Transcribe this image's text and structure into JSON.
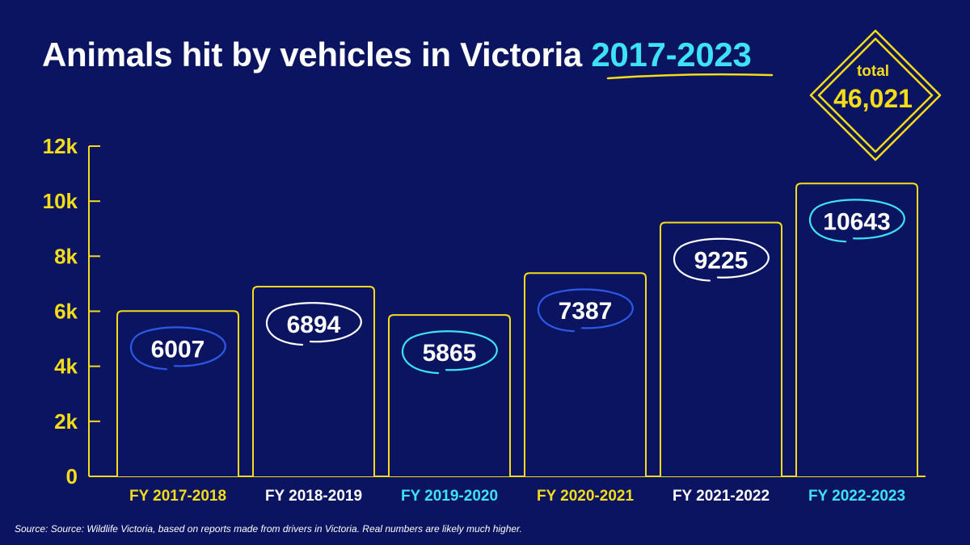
{
  "header": {
    "title_main": "Animals hit by vehicles in Victoria",
    "title_highlight": "2017-2023"
  },
  "total": {
    "label": "total",
    "value": "46,021"
  },
  "footer": {
    "source": "Source: Source: Wildlife Victoria, based on reports made from drivers in Victoria. Real numbers are likely much higher."
  },
  "colors": {
    "background": "#0b1461",
    "yellow": "#f5dc19",
    "cyan": "#3ee2f5",
    "blue": "#2c59e6",
    "white": "#ffffff"
  },
  "chart_data": {
    "type": "bar",
    "title": "Animals hit by vehicles in Victoria 2017-2023",
    "xlabel": "",
    "ylabel": "",
    "categories": [
      "FY 2017-2018",
      "FY 2018-2019",
      "FY 2019-2020",
      "FY 2020-2021",
      "FY 2021-2022",
      "FY 2022-2023"
    ],
    "values": [
      6007,
      6894,
      5865,
      7387,
      9225,
      10643
    ],
    "category_label_colors": [
      "yellow",
      "white",
      "cyan",
      "yellow",
      "white",
      "cyan"
    ],
    "value_circle_colors": [
      "blue",
      "white",
      "cyan",
      "blue",
      "white",
      "cyan"
    ],
    "ylim": [
      0,
      12000
    ],
    "yticks": [
      0,
      2000,
      4000,
      6000,
      8000,
      10000,
      12000
    ],
    "ytick_labels": [
      "0",
      "2k",
      "4k",
      "6k",
      "8k",
      "10k",
      "12k"
    ],
    "grid": false,
    "legend": "none"
  }
}
